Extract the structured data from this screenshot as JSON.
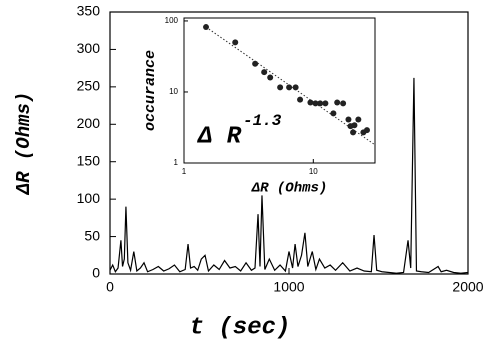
{
  "chart_data": [
    {
      "type": "line",
      "xlabel": "t (sec)",
      "ylabel": "ΔR (Ohms)",
      "color": "#000000",
      "x": [
        0,
        15,
        30,
        45,
        61,
        70,
        80,
        89,
        100,
        115,
        133,
        150,
        170,
        190,
        210,
        240,
        270,
        300,
        330,
        360,
        390,
        420,
        436,
        450,
        470,
        490,
        510,
        531,
        550,
        580,
        610,
        640,
        670,
        700,
        730,
        760,
        790,
        810,
        827,
        838,
        849,
        865,
        890,
        920,
        950,
        980,
        1000,
        1020,
        1034,
        1050,
        1070,
        1089,
        1105,
        1130,
        1150,
        1170,
        1200,
        1230,
        1260,
        1300,
        1340,
        1380,
        1420,
        1460,
        1475,
        1490,
        1520,
        1560,
        1600,
        1640,
        1665,
        1680,
        1698,
        1712,
        1740,
        1780,
        1820,
        1833,
        1850,
        1880,
        1920,
        1960,
        2000
      ],
      "values": [
        5,
        12,
        3,
        8,
        45,
        10,
        20,
        90,
        15,
        5,
        30,
        4,
        8,
        15,
        3,
        6,
        10,
        4,
        7,
        12,
        3,
        6,
        40,
        8,
        10,
        5,
        20,
        25,
        4,
        12,
        6,
        18,
        8,
        10,
        4,
        15,
        5,
        8,
        80,
        10,
        105,
        6,
        20,
        5,
        12,
        4,
        30,
        8,
        40,
        10,
        25,
        55,
        10,
        30,
        6,
        20,
        8,
        12,
        5,
        15,
        4,
        8,
        4,
        3,
        52,
        5,
        3,
        2,
        1,
        2,
        45,
        8,
        262,
        4,
        3,
        2,
        8,
        10,
        3,
        5,
        2,
        1,
        2
      ],
      "xlim": [
        0,
        2000
      ],
      "xticks": [
        0,
        1000,
        2000
      ],
      "ylim": [
        0,
        350
      ],
      "yticks": [
        0,
        50,
        100,
        150,
        200,
        250,
        300,
        350
      ]
    },
    {
      "type": "scatter",
      "xlabel": "ΔR (Ohms)",
      "ylabel": "occurance",
      "annotation": "Δ R",
      "annotation_exponent": "-1.3",
      "log_x": true,
      "log_y": true,
      "color": "#222222",
      "x": [
        1.48,
        2.49,
        3.55,
        4.17,
        4.64,
        5.54,
        6.5,
        7.3,
        7.9,
        9.5,
        10.4,
        11.3,
        12.4,
        14.3,
        15.3,
        17,
        18.7,
        19.4,
        20.8,
        22.3,
        20.3,
        24.4,
        26
      ],
      "values": [
        82,
        50,
        25,
        19,
        16,
        11.6,
        11.6,
        11.6,
        7.8,
        7.1,
        6.9,
        6.9,
        6.9,
        5,
        7.1,
        6.9,
        4.1,
        3.3,
        3.4,
        4.1,
        2.7,
        2.7,
        2.9
      ],
      "fit": {
        "x": [
          1.48,
          30
        ],
        "y": [
          82,
          1.8
        ]
      },
      "xlim": [
        1,
        30
      ],
      "xticks": [
        1,
        10
      ],
      "ylim": [
        1,
        110
      ],
      "yticks": [
        1,
        10,
        100
      ]
    }
  ]
}
